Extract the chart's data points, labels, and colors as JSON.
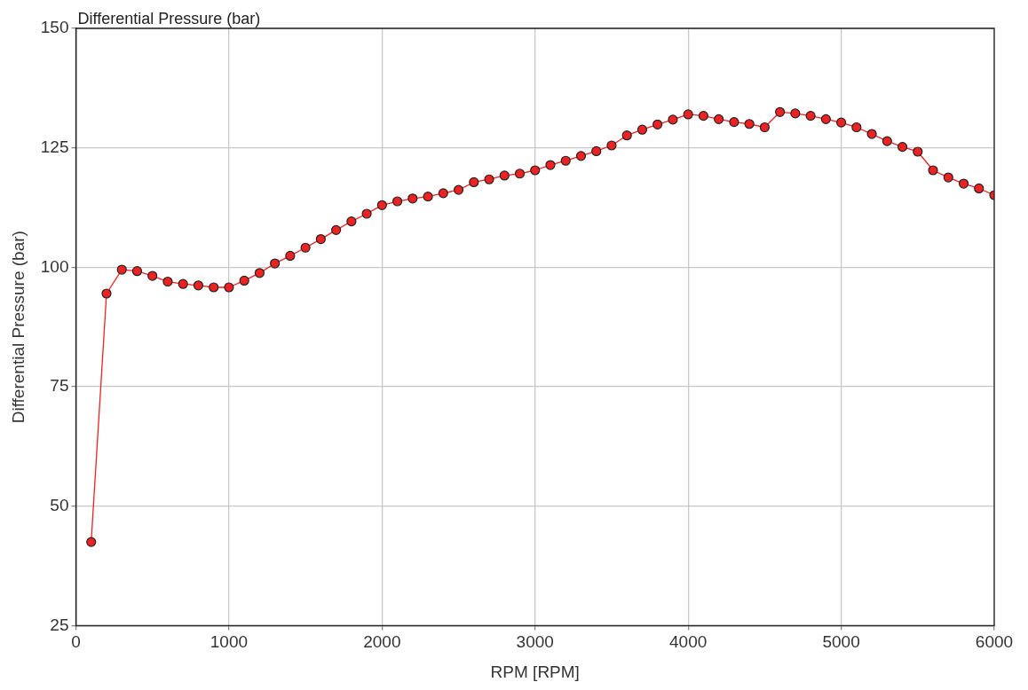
{
  "chart_data": {
    "type": "line",
    "title": "Differential Pressure (bar)",
    "xlabel": "RPM [RPM]",
    "ylabel": "Differential Pressure (bar)",
    "xlim": [
      0,
      6000
    ],
    "xticks": [
      0,
      1000,
      2000,
      3000,
      4000,
      5000,
      6000
    ],
    "ylim": [
      25,
      150
    ],
    "yticks": [
      25,
      50,
      75,
      100,
      125,
      150
    ],
    "grid": true,
    "marker": "circle",
    "line_style": "solid",
    "x": [
      100,
      200,
      300,
      400,
      500,
      600,
      700,
      800,
      900,
      1000,
      1100,
      1200,
      1300,
      1400,
      1500,
      1600,
      1700,
      1800,
      1900,
      2000,
      2100,
      2200,
      2300,
      2400,
      2500,
      2600,
      2700,
      2800,
      2900,
      3000,
      3100,
      3200,
      3300,
      3400,
      3500,
      3600,
      3700,
      3800,
      3900,
      4000,
      4100,
      4200,
      4300,
      4400,
      4500,
      4600,
      4700,
      4800,
      4900,
      5000,
      5100,
      5200,
      5300,
      5400,
      5500,
      5600,
      5700,
      5800,
      5900,
      6000
    ],
    "series": [
      {
        "color": "#ee2222",
        "values": [
          42.5,
          94.5,
          99.5,
          99.2,
          98.2,
          97,
          96.5,
          96.2,
          95.8,
          95.8,
          97.2,
          98.8,
          100.8,
          102.4,
          104.1,
          105.9,
          107.8,
          109.6,
          111.2,
          113,
          113.8,
          114.4,
          114.8,
          115.5,
          116.2,
          117.8,
          118.4,
          119.2,
          119.6,
          120.3,
          121.4,
          122.3,
          123.3,
          124.3,
          125.5,
          127.6,
          128.8,
          129.9,
          130.9,
          132,
          131.7,
          131,
          130.4,
          130,
          129.3,
          132.5,
          132.2,
          131.7,
          131,
          130.3,
          129.3,
          127.9,
          126.4,
          125.2,
          124.2,
          120.3,
          118.8,
          117.5,
          116.5,
          115.1
        ]
      }
    ]
  }
}
